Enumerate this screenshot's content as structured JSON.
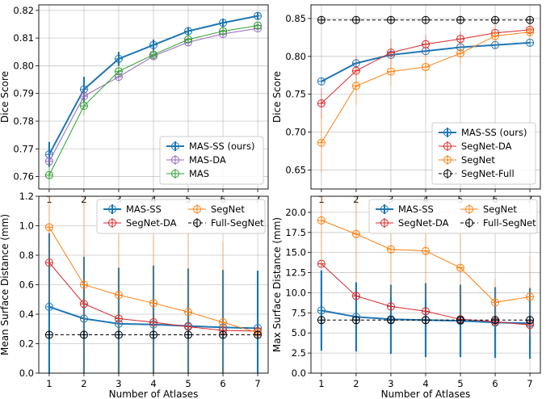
{
  "chart_data": [
    {
      "type": "line",
      "xlabel": "",
      "ylabel": "Dice Score",
      "x": [
        1,
        2,
        3,
        4,
        5,
        6,
        7
      ],
      "xlim": [
        0.7,
        7.3
      ],
      "ylim": [
        0.7555,
        0.822
      ],
      "yticks": [
        0.76,
        0.77,
        0.78,
        0.79,
        0.8,
        0.81,
        0.82
      ],
      "ytick_labels": [
        "0.76",
        "0.77",
        "0.78",
        "0.79",
        "0.80",
        "0.81",
        "0.82"
      ],
      "grid": true,
      "legend_position": "lower right",
      "legend_columns": 1,
      "series": [
        {
          "name": "MAS-SS (ours)",
          "color": "#1f77b4",
          "values": [
            0.768,
            0.7915,
            0.8025,
            0.8075,
            0.8125,
            0.8155,
            0.818
          ],
          "err": [
            0.0045,
            0.0045,
            0.0025,
            0.002,
            0.0015,
            0.0015,
            0.0013
          ],
          "linewidth": 2.0
        },
        {
          "name": "MAS-DA",
          "color": "#9467bd",
          "values": [
            0.7655,
            0.789,
            0.796,
            0.8035,
            0.8085,
            0.8115,
            0.8135
          ],
          "err": [
            0.0035,
            0.0035,
            0.002,
            0.0015,
            0.0015,
            0.0015,
            0.0013
          ],
          "linewidth": 1.0
        },
        {
          "name": "MAS",
          "color": "#2ca02c",
          "values": [
            0.7605,
            0.7855,
            0.798,
            0.804,
            0.8095,
            0.8125,
            0.8145
          ],
          "err": [
            0.0045,
            0.0035,
            0.002,
            0.0015,
            0.0015,
            0.0015,
            0.0013
          ],
          "linewidth": 1.0
        }
      ]
    },
    {
      "type": "line",
      "xlabel": "",
      "ylabel": "Dice Score",
      "x": [
        1,
        2,
        3,
        4,
        5,
        6,
        7
      ],
      "xlim": [
        0.7,
        7.3
      ],
      "ylim": [
        0.625,
        0.868
      ],
      "yticks": [
        0.65,
        0.7,
        0.75,
        0.8,
        0.85
      ],
      "ytick_labels": [
        "0.65",
        "0.70",
        "0.75",
        "0.80",
        "0.85"
      ],
      "grid": true,
      "legend_position": "lower right",
      "legend_columns": 1,
      "series": [
        {
          "name": "MAS-SS (ours)",
          "color": "#1f77b4",
          "values": [
            0.767,
            0.791,
            0.802,
            0.807,
            0.812,
            0.815,
            0.818
          ],
          "err": [
            0.0,
            0.0,
            0.0,
            0.0,
            0.0,
            0.0,
            0.0
          ],
          "linewidth": 2.0
        },
        {
          "name": "SegNet-DA",
          "color": "#d62728",
          "values": [
            0.738,
            0.781,
            0.805,
            0.816,
            0.823,
            0.831,
            0.835
          ],
          "err": [
            0.02,
            0.02,
            0.018,
            0.012,
            0.01,
            0.01,
            0.008
          ],
          "linewidth": 1.0
        },
        {
          "name": "SegNet",
          "color": "#ff7f0e",
          "values": [
            0.686,
            0.761,
            0.78,
            0.786,
            0.804,
            0.827,
            0.832
          ],
          "err": [
            0.04,
            0.025,
            0.02,
            0.018,
            0.015,
            0.012,
            0.01
          ],
          "linewidth": 1.0
        },
        {
          "name": "SegNet-Full",
          "color": "#000000",
          "values": [
            0.848,
            0.848,
            0.848,
            0.848,
            0.848,
            0.848,
            0.848
          ],
          "err": [
            0.005,
            0.005,
            0.005,
            0.005,
            0.005,
            0.005,
            0.005
          ],
          "linewidth": 1.0,
          "dashed": true
        }
      ]
    },
    {
      "type": "line",
      "xlabel": "Number of Atlases",
      "ylabel": "Mean Surface Distance (mm)",
      "x": [
        1,
        2,
        3,
        4,
        5,
        6,
        7
      ],
      "xlim": [
        0.7,
        7.3
      ],
      "ylim": [
        0,
        1.2
      ],
      "yticks": [
        0.0,
        0.2,
        0.4,
        0.6,
        0.8,
        1.0,
        1.2
      ],
      "ytick_labels": [
        "0.0",
        "0.2",
        "0.4",
        "0.6",
        "0.8",
        "1.0",
        "1.2"
      ],
      "grid": true,
      "legend_position": "upper right",
      "legend_columns": 2,
      "series": [
        {
          "name": "MAS-SS",
          "color": "#1f77b4",
          "values": [
            0.45,
            0.37,
            0.335,
            0.33,
            0.32,
            0.31,
            0.305
          ],
          "err": [
            0.5,
            0.42,
            0.38,
            0.4,
            0.39,
            0.39,
            0.39
          ],
          "linewidth": 2.0
        },
        {
          "name": "SegNet-DA",
          "color": "#d62728",
          "values": [
            0.75,
            0.47,
            0.37,
            0.345,
            0.315,
            0.29,
            0.285
          ],
          "err": [
            0.0,
            0.0,
            0.0,
            0.0,
            0.0,
            0.0,
            0.0
          ],
          "linewidth": 1.0
        },
        {
          "name": "SegNet",
          "color": "#ff7f0e",
          "values": [
            0.99,
            0.6,
            0.53,
            0.475,
            0.415,
            0.345,
            0.275
          ],
          "err": [
            0.5,
            0.62,
            0.62,
            0.6,
            0.56,
            0.55,
            0.0
          ],
          "linewidth": 1.0
        },
        {
          "name": "Full-SegNet",
          "color": "#000000",
          "values": [
            0.26,
            0.26,
            0.26,
            0.26,
            0.26,
            0.26,
            0.26
          ],
          "err": [
            0.0,
            0.0,
            0.0,
            0.0,
            0.0,
            0.0,
            0.0
          ],
          "linewidth": 1.0,
          "dashed": true
        }
      ]
    },
    {
      "type": "line",
      "xlabel": "Number of Atlases",
      "ylabel": "Max Surface Distance (mm)",
      "x": [
        1,
        2,
        3,
        4,
        5,
        6,
        7
      ],
      "xlim": [
        0.7,
        7.3
      ],
      "ylim": [
        0,
        22
      ],
      "yticks": [
        0.0,
        2.5,
        5.0,
        7.5,
        10.0,
        12.5,
        15.0,
        17.5,
        20.0
      ],
      "ytick_labels": [
        "0.0",
        "2.5",
        "5.0",
        "7.5",
        "10.0",
        "12.5",
        "15.0",
        "17.5",
        "20.0"
      ],
      "grid": true,
      "legend_position": "upper right",
      "legend_columns": 2,
      "series": [
        {
          "name": "MAS-SS",
          "color": "#1f77b4",
          "values": [
            7.8,
            7.0,
            6.7,
            6.6,
            6.5,
            6.3,
            6.2
          ],
          "err": [
            5.0,
            4.3,
            4.3,
            4.6,
            4.5,
            4.4,
            4.4
          ],
          "linewidth": 2.0
        },
        {
          "name": "SegNet-DA",
          "color": "#d62728",
          "values": [
            13.6,
            9.6,
            8.3,
            7.7,
            6.7,
            6.4,
            6.0
          ],
          "err": [
            0.0,
            0.0,
            0.0,
            0.0,
            0.0,
            0.0,
            0.0
          ],
          "linewidth": 1.0
        },
        {
          "name": "SegNet",
          "color": "#ff7f0e",
          "values": [
            19.0,
            17.3,
            15.4,
            15.2,
            13.1,
            8.8,
            9.5
          ],
          "err": [
            6.0,
            6.0,
            6.0,
            6.0,
            6.0,
            3.0,
            5.0
          ],
          "linewidth": 1.0
        },
        {
          "name": "Full-SegNet",
          "color": "#000000",
          "values": [
            6.6,
            6.6,
            6.6,
            6.6,
            6.6,
            6.6,
            6.6
          ],
          "err": [
            0.0,
            0.0,
            0.0,
            0.0,
            0.0,
            0.0,
            0.0
          ],
          "linewidth": 1.0,
          "dashed": true
        }
      ]
    }
  ]
}
